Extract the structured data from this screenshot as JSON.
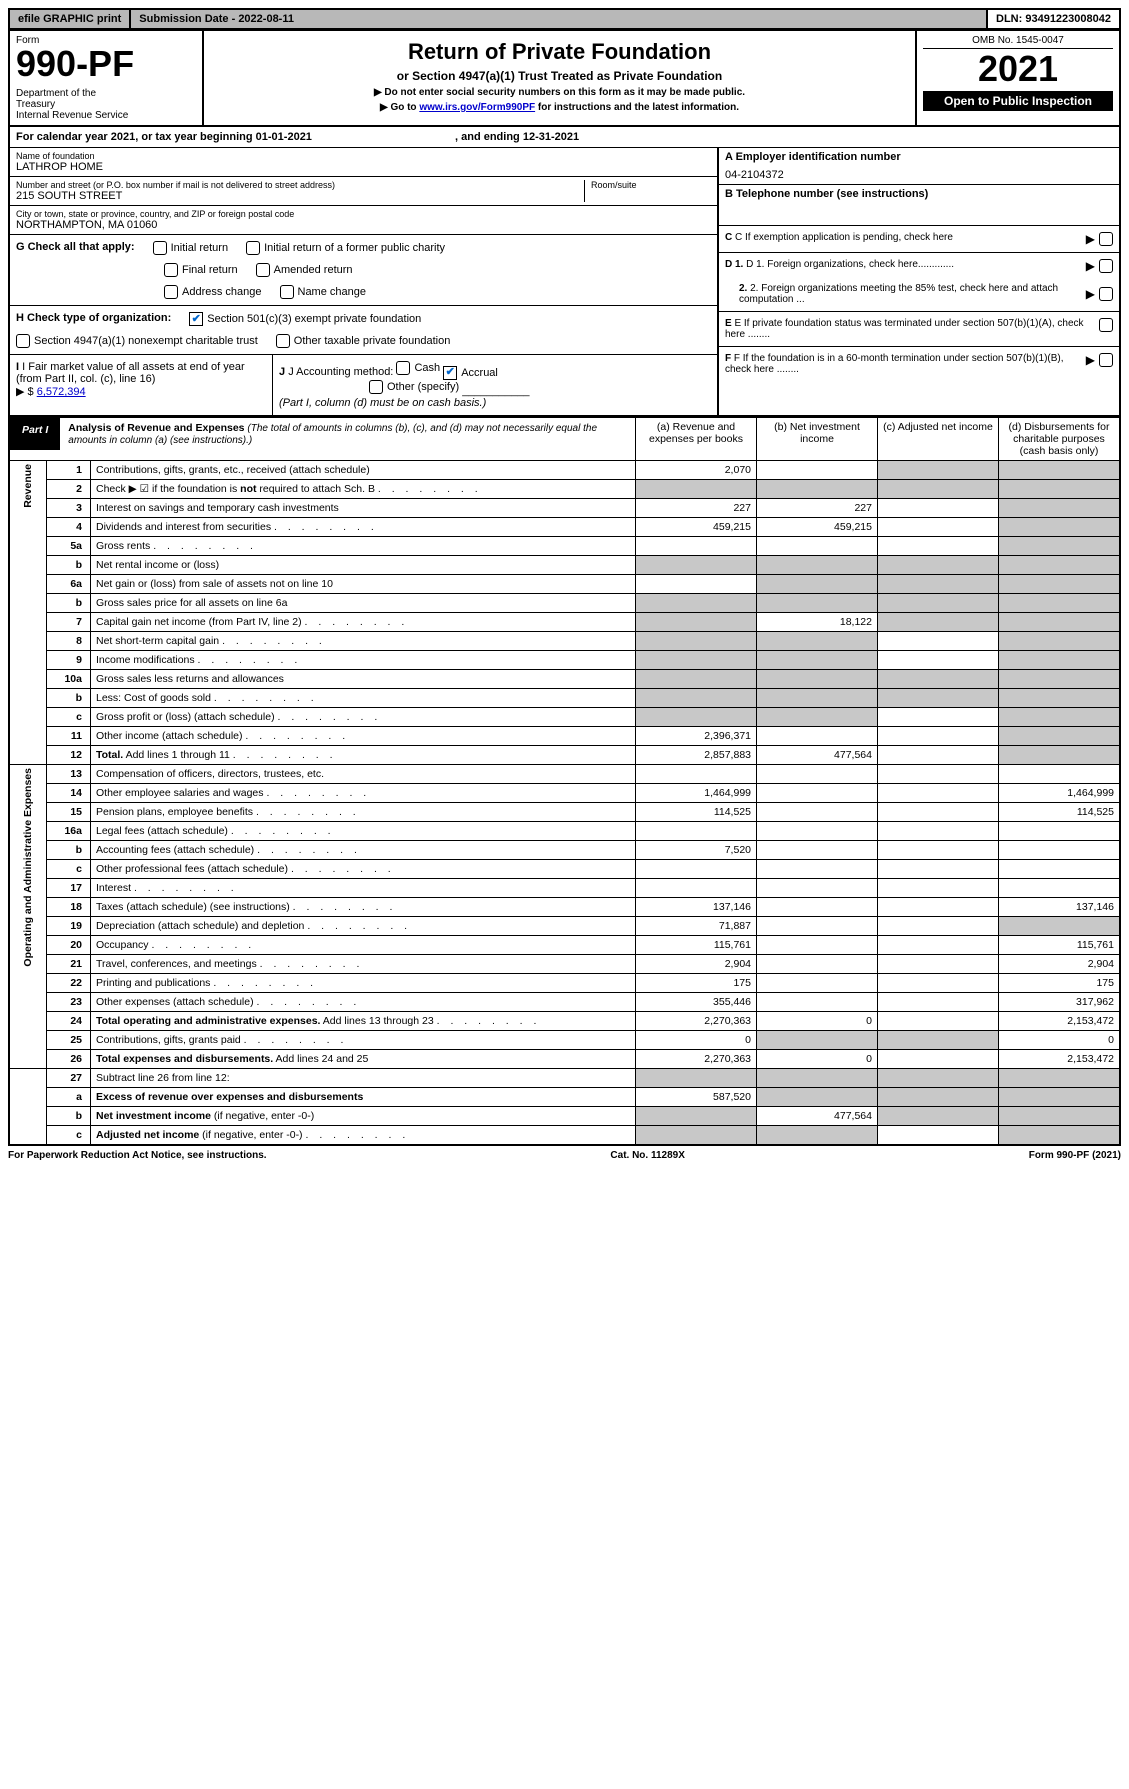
{
  "topbar": {
    "efile": "efile GRAPHIC print",
    "subdate_label": "Submission Date - 2022-08-11",
    "dln": "DLN: 93491223008042"
  },
  "header": {
    "form_word": "Form",
    "form_num": "990-PF",
    "dept": "Department of the Treasury\nInternal Revenue Service",
    "title": "Return of Private Foundation",
    "subtitle": "or Section 4947(a)(1) Trust Treated as Private Foundation",
    "note1": "▶ Do not enter social security numbers on this form as it may be made public.",
    "note2_pre": "▶ Go to ",
    "note2_link": "www.irs.gov/Form990PF",
    "note2_post": " for instructions and the latest information.",
    "omb": "OMB No. 1545-0047",
    "year": "2021",
    "open": "Open to Public Inspection"
  },
  "cal": {
    "line_pre": "For calendar year 2021, or tax year beginning ",
    "begin": "01-01-2021",
    "mid": " , and ending ",
    "end": "12-31-2021"
  },
  "org": {
    "name_lbl": "Name of foundation",
    "name": "LATHROP HOME",
    "addr_lbl": "Number and street (or P.O. box number if mail is not delivered to street address)",
    "addr": "215 SOUTH STREET",
    "room_lbl": "Room/suite",
    "room": "",
    "city_lbl": "City or town, state or province, country, and ZIP or foreign postal code",
    "city": "NORTHAMPTON, MA  01060"
  },
  "right": {
    "a_lbl": "A Employer identification number",
    "a_val": "04-2104372",
    "b_lbl": "B Telephone number (see instructions)",
    "b_val": "",
    "c_lbl": "C If exemption application is pending, check here",
    "d1": "D 1. Foreign organizations, check here.............",
    "d2": "2. Foreign organizations meeting the 85% test, check here and attach computation ...",
    "e": "E  If private foundation status was terminated under section 507(b)(1)(A), check here ........",
    "f": "F  If the foundation is in a 60-month termination under section 507(b)(1)(B), check here ........"
  },
  "g": {
    "lbl": "G Check all that apply:",
    "opts": [
      "Initial return",
      "Final return",
      "Address change",
      "Initial return of a former public charity",
      "Amended return",
      "Name change"
    ]
  },
  "h": {
    "lbl": "H Check type of organization:",
    "o1": "Section 501(c)(3) exempt private foundation",
    "o2": "Section 4947(a)(1) nonexempt charitable trust",
    "o3": "Other taxable private foundation"
  },
  "i": {
    "lbl": "I Fair market value of all assets at end of year (from Part II, col. (c), line 16)",
    "val_pre": "▶ $  ",
    "val": "6,572,394"
  },
  "j": {
    "lbl": "J Accounting method:",
    "cash": "Cash",
    "accrual": "Accrual",
    "other": "Other (specify)",
    "note": "(Part I, column (d) must be on cash basis.)"
  },
  "part1": {
    "label": "Part I",
    "title": "Analysis of Revenue and Expenses",
    "sub": "(The total of amounts in columns (b), (c), and (d) may not necessarily equal the amounts in column (a) (see instructions).)",
    "col_a": "(a)   Revenue and expenses per books",
    "col_b": "(b)  Net investment income",
    "col_c": "(c)  Adjusted net income",
    "col_d": "(d)  Disbursements for charitable purposes (cash basis only)"
  },
  "sections": {
    "revenue": "Revenue",
    "expenses": "Operating and Administrative Expenses"
  },
  "rows": [
    {
      "n": "1",
      "d": "Contributions, gifts, grants, etc., received (attach schedule)",
      "a": "2,070",
      "b": "",
      "c": "shade",
      "dd": "shade"
    },
    {
      "n": "2",
      "d": "Check ▶ ☑ if the foundation is <b>not</b> required to attach Sch. B",
      "dots": true,
      "a": "shade",
      "b": "shade",
      "c": "shade",
      "dd": "shade"
    },
    {
      "n": "3",
      "d": "Interest on savings and temporary cash investments",
      "a": "227",
      "b": "227",
      "c": "",
      "dd": "shade"
    },
    {
      "n": "4",
      "d": "Dividends and interest from securities",
      "dots": true,
      "a": "459,215",
      "b": "459,215",
      "c": "",
      "dd": "shade"
    },
    {
      "n": "5a",
      "d": "Gross rents",
      "dots": true,
      "a": "",
      "b": "",
      "c": "",
      "dd": "shade"
    },
    {
      "n": "b",
      "d": "Net rental income or (loss)",
      "line": true,
      "a": "shade",
      "b": "shade",
      "c": "shade",
      "dd": "shade"
    },
    {
      "n": "6a",
      "d": "Net gain or (loss) from sale of assets not on line 10",
      "a": "",
      "b": "shade",
      "c": "shade",
      "dd": "shade"
    },
    {
      "n": "b",
      "d": "Gross sales price for all assets on line 6a",
      "line": true,
      "a": "shade",
      "b": "shade",
      "c": "shade",
      "dd": "shade"
    },
    {
      "n": "7",
      "d": "Capital gain net income (from Part IV, line 2)",
      "dots": true,
      "a": "shade",
      "b": "18,122",
      "c": "shade",
      "dd": "shade"
    },
    {
      "n": "8",
      "d": "Net short-term capital gain",
      "dots": true,
      "a": "shade",
      "b": "shade",
      "c": "",
      "dd": "shade"
    },
    {
      "n": "9",
      "d": "Income modifications",
      "dots": true,
      "a": "shade",
      "b": "shade",
      "c": "",
      "dd": "shade"
    },
    {
      "n": "10a",
      "d": "Gross sales less returns and allowances",
      "line": true,
      "a": "shade",
      "b": "shade",
      "c": "shade",
      "dd": "shade"
    },
    {
      "n": "b",
      "d": "Less: Cost of goods sold",
      "dots": true,
      "line": true,
      "a": "shade",
      "b": "shade",
      "c": "shade",
      "dd": "shade"
    },
    {
      "n": "c",
      "d": "Gross profit or (loss) (attach schedule)",
      "dots": true,
      "a": "shade",
      "b": "shade",
      "c": "",
      "dd": "shade"
    },
    {
      "n": "11",
      "d": "Other income (attach schedule)",
      "dots": true,
      "a": "2,396,371",
      "b": "",
      "c": "",
      "dd": "shade"
    },
    {
      "n": "12",
      "d": "<b>Total.</b> Add lines 1 through 11",
      "dots": true,
      "a": "2,857,883",
      "b": "477,564",
      "c": "",
      "dd": "shade"
    }
  ],
  "exp_rows": [
    {
      "n": "13",
      "d": "Compensation of officers, directors, trustees, etc.",
      "a": "",
      "b": "",
      "c": "",
      "dd": ""
    },
    {
      "n": "14",
      "d": "Other employee salaries and wages",
      "dots": true,
      "a": "1,464,999",
      "b": "",
      "c": "",
      "dd": "1,464,999"
    },
    {
      "n": "15",
      "d": "Pension plans, employee benefits",
      "dots": true,
      "a": "114,525",
      "b": "",
      "c": "",
      "dd": "114,525"
    },
    {
      "n": "16a",
      "d": "Legal fees (attach schedule)",
      "dots": true,
      "a": "",
      "b": "",
      "c": "",
      "dd": ""
    },
    {
      "n": "b",
      "d": "Accounting fees (attach schedule)",
      "dots": true,
      "a": "7,520",
      "b": "",
      "c": "",
      "dd": ""
    },
    {
      "n": "c",
      "d": "Other professional fees (attach schedule)",
      "dots": true,
      "a": "",
      "b": "",
      "c": "",
      "dd": ""
    },
    {
      "n": "17",
      "d": "Interest",
      "dots": true,
      "a": "",
      "b": "",
      "c": "",
      "dd": ""
    },
    {
      "n": "18",
      "d": "Taxes (attach schedule) (see instructions)",
      "dots": true,
      "a": "137,146",
      "b": "",
      "c": "",
      "dd": "137,146"
    },
    {
      "n": "19",
      "d": "Depreciation (attach schedule) and depletion",
      "dots": true,
      "a": "71,887",
      "b": "",
      "c": "",
      "dd": "shade"
    },
    {
      "n": "20",
      "d": "Occupancy",
      "dots": true,
      "a": "115,761",
      "b": "",
      "c": "",
      "dd": "115,761"
    },
    {
      "n": "21",
      "d": "Travel, conferences, and meetings",
      "dots": true,
      "a": "2,904",
      "b": "",
      "c": "",
      "dd": "2,904"
    },
    {
      "n": "22",
      "d": "Printing and publications",
      "dots": true,
      "a": "175",
      "b": "",
      "c": "",
      "dd": "175"
    },
    {
      "n": "23",
      "d": "Other expenses (attach schedule)",
      "dots": true,
      "a": "355,446",
      "b": "",
      "c": "",
      "dd": "317,962"
    },
    {
      "n": "24",
      "d": "<b>Total operating and administrative expenses.</b> Add lines 13 through 23",
      "dots": true,
      "a": "2,270,363",
      "b": "0",
      "c": "",
      "dd": "2,153,472"
    },
    {
      "n": "25",
      "d": "Contributions, gifts, grants paid",
      "dots": true,
      "a": "0",
      "b": "shade",
      "c": "shade",
      "dd": "0"
    },
    {
      "n": "26",
      "d": "<b>Total expenses and disbursements.</b> Add lines 24 and 25",
      "a": "2,270,363",
      "b": "0",
      "c": "",
      "dd": "2,153,472"
    }
  ],
  "sub_rows": [
    {
      "n": "27",
      "d": "Subtract line 26 from line 12:",
      "a": "shade",
      "b": "shade",
      "c": "shade",
      "dd": "shade"
    },
    {
      "n": "a",
      "d": "<b>Excess of revenue over expenses and disbursements</b>",
      "a": "587,520",
      "b": "shade",
      "c": "shade",
      "dd": "shade"
    },
    {
      "n": "b",
      "d": "<b>Net investment income</b> (if negative, enter -0-)",
      "a": "shade",
      "b": "477,564",
      "c": "shade",
      "dd": "shade"
    },
    {
      "n": "c",
      "d": "<b>Adjusted net income</b> (if negative, enter -0-)",
      "dots": true,
      "a": "shade",
      "b": "shade",
      "c": "",
      "dd": "shade"
    }
  ],
  "footer": {
    "left": "For Paperwork Reduction Act Notice, see instructions.",
    "mid": "Cat. No. 11289X",
    "right": "Form 990-PF (2021)"
  }
}
